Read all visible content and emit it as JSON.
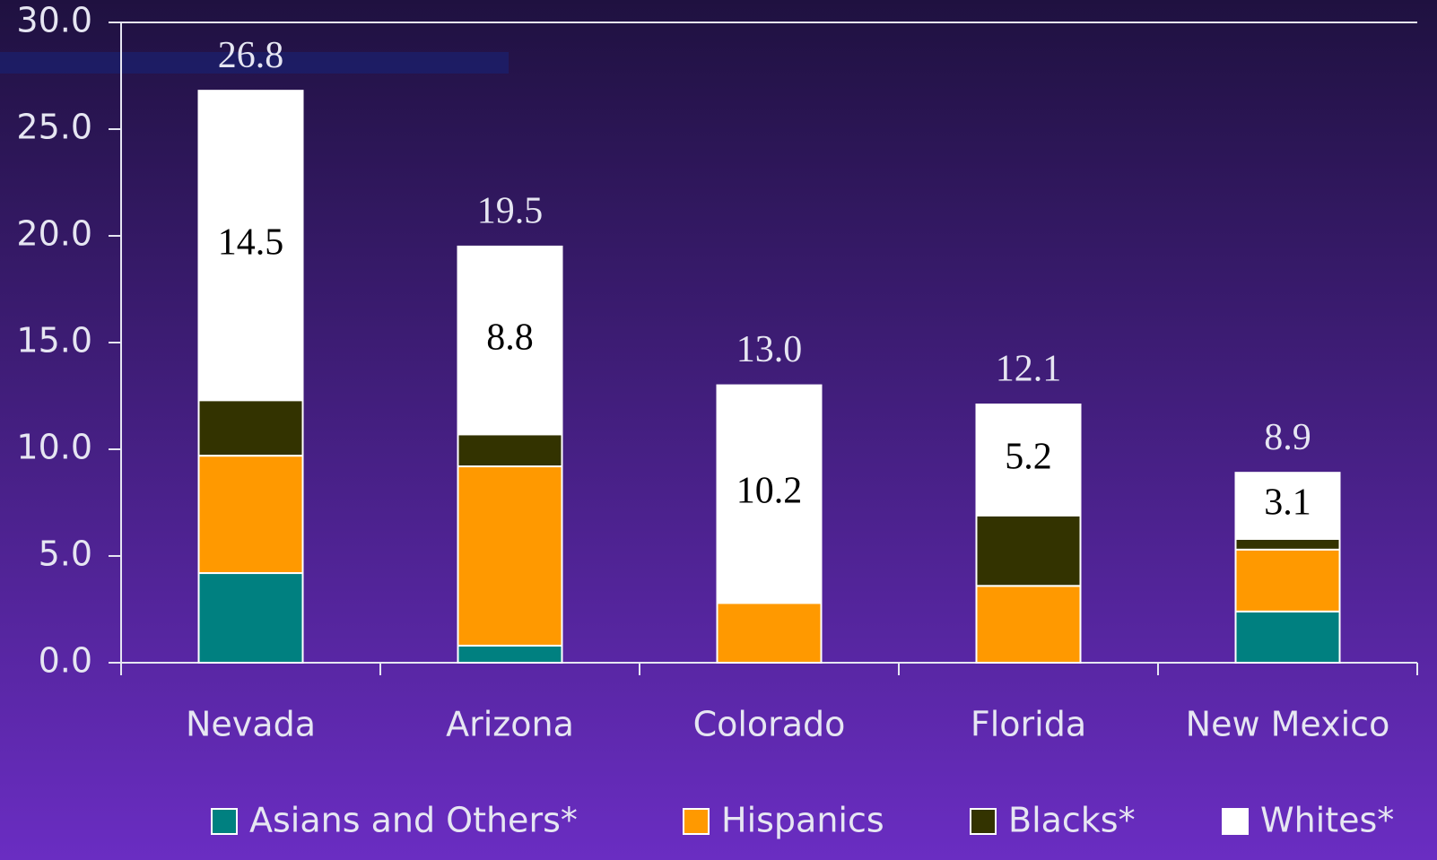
{
  "chart_data": {
    "type": "stacked_bar",
    "categories": [
      "Nevada",
      "Arizona",
      "Colorado",
      "Florida",
      "New Mexico"
    ],
    "series": [
      {
        "name": "Asians and Others*",
        "color": "#008080",
        "values": [
          4.2,
          0.8,
          0,
          0,
          2.4
        ]
      },
      {
        "name": "Hispanics",
        "color": "#ff9900",
        "values": [
          5.5,
          8.4,
          2.8,
          3.6,
          2.9
        ]
      },
      {
        "name": "Blacks*",
        "color": "#333300",
        "values": [
          2.6,
          1.5,
          0,
          3.3,
          0.5
        ]
      },
      {
        "name": "Whites*",
        "color": "#ffffff",
        "values": [
          14.5,
          8.8,
          10.2,
          5.2,
          3.1
        ]
      }
    ],
    "totals": [
      26.8,
      19.5,
      13.0,
      12.1,
      8.9
    ],
    "ylim": [
      0,
      30
    ],
    "yticks": [
      {
        "value": 0,
        "label": "0.0"
      },
      {
        "value": 5,
        "label": "5.0"
      },
      {
        "value": 10,
        "label": "10.0"
      },
      {
        "value": 15,
        "label": "15.0"
      },
      {
        "value": 20,
        "label": "20.0"
      },
      {
        "value": 25,
        "label": "25.0"
      },
      {
        "value": 30,
        "label": "30.0"
      }
    ],
    "legend": "bottom"
  }
}
